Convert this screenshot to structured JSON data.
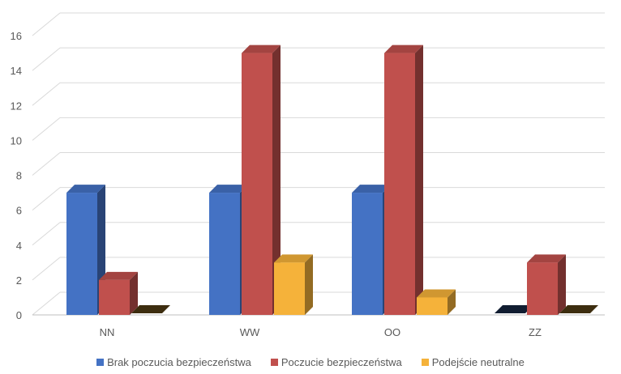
{
  "chart_data": {
    "type": "bar",
    "categories": [
      "NN",
      "WW",
      "OO",
      "ZZ"
    ],
    "series": [
      {
        "name": "Brak poczucia bezpieczeństwa",
        "values": [
          7,
          7,
          7,
          0
        ],
        "color": "#4472c4"
      },
      {
        "name": "Poczucie bezpieczeństwa",
        "values": [
          2,
          15,
          15,
          3
        ],
        "color": "#c0504d"
      },
      {
        "name": "Podejście neutralne",
        "values": [
          0,
          3,
          1,
          0
        ],
        "color": "#f5b23a"
      }
    ],
    "ylim": [
      0,
      16
    ],
    "yticks": [
      "0",
      "2",
      "4",
      "6",
      "8",
      "10",
      "12",
      "14",
      "16"
    ],
    "grid": true,
    "legend_position": "bottom",
    "style": "3d-clustered-column",
    "title": "",
    "xlabel": "",
    "ylabel": ""
  }
}
